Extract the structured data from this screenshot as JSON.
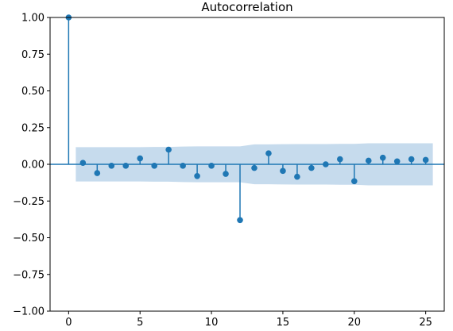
{
  "chart_data": {
    "type": "scatter",
    "title": "Autocorrelation",
    "xlabel": "",
    "ylabel": "",
    "xlim": [
      -1.3,
      26.3
    ],
    "ylim": [
      -1.0,
      1.0
    ],
    "xticks": [
      0,
      5,
      10,
      15,
      20,
      25
    ],
    "xtick_labels": [
      "0",
      "5",
      "10",
      "15",
      "20",
      "25"
    ],
    "yticks": [
      1.0,
      0.75,
      0.5,
      0.25,
      0.0,
      -0.25,
      -0.5,
      -0.75,
      -1.0
    ],
    "ytick_labels": [
      "1.00",
      "0.75",
      "0.50",
      "0.25",
      "0.00",
      "−0.25",
      "−0.50",
      "−0.75",
      "−1.00"
    ],
    "grid": false,
    "colors": {
      "stem": "#1f77b4",
      "band": "#c6dbed",
      "baseline": "#1f77b4"
    },
    "series": [
      {
        "x": [
          0,
          1,
          2,
          3,
          4,
          5,
          6,
          7,
          8,
          9,
          10,
          11,
          12,
          13,
          14,
          15,
          16,
          17,
          18,
          19,
          20,
          21,
          22,
          23,
          24,
          25
        ],
        "values": [
          1.0,
          0.01,
          -0.06,
          -0.01,
          -0.01,
          0.04,
          -0.01,
          0.1,
          -0.01,
          -0.08,
          -0.01,
          -0.065,
          -0.38,
          -0.025,
          0.075,
          -0.045,
          -0.085,
          -0.025,
          0.0,
          0.035,
          -0.115,
          0.025,
          0.045,
          0.02,
          0.035,
          0.03
        ]
      }
    ],
    "confidence_band": {
      "x": [
        0.5,
        1,
        2,
        3,
        4,
        5,
        6,
        7,
        8,
        9,
        10,
        11,
        12,
        13,
        14,
        15,
        16,
        17,
        18,
        19,
        20,
        21,
        22,
        23,
        24,
        25,
        25.5
      ],
      "upper": [
        0.117,
        0.117,
        0.117,
        0.117,
        0.117,
        0.117,
        0.118,
        0.118,
        0.121,
        0.122,
        0.122,
        0.122,
        0.122,
        0.136,
        0.136,
        0.137,
        0.138,
        0.138,
        0.138,
        0.139,
        0.139,
        0.143,
        0.143,
        0.143,
        0.143,
        0.143,
        0.143
      ]
    }
  }
}
